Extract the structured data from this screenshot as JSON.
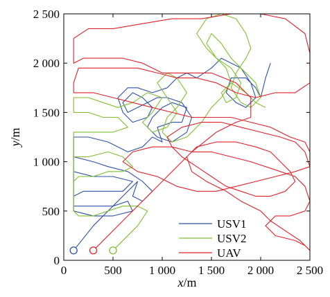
{
  "chart_data": {
    "type": "line",
    "xlabel_var": "x",
    "xlabel_unit": "/m",
    "ylabel_var": "y",
    "ylabel_unit": "/m",
    "xlim": [
      0,
      2500
    ],
    "ylim": [
      0,
      2500
    ],
    "xticks": [
      0,
      500,
      1000,
      1500,
      2000,
      2500
    ],
    "yticks": [
      0,
      500,
      1000,
      1500,
      2000,
      2500
    ],
    "xtick_labels": [
      "0",
      "500",
      "1 000",
      "1 500",
      "2 000",
      "2 500"
    ],
    "ytick_labels": [
      "0",
      "500",
      "1 000",
      "1 500",
      "2 000",
      "2 500"
    ],
    "grid": false,
    "legend_position": "bottom-right",
    "series": [
      {
        "name": "USV1",
        "color": "#2f4fa8",
        "start_marker": [
          100,
          100
        ],
        "x": [
          100,
          300,
          600,
          750,
          700,
          800,
          900,
          800,
          650,
          450,
          300,
          100,
          100,
          300,
          500,
          700,
          600,
          400,
          200,
          100,
          100,
          300,
          500,
          650,
          700,
          500,
          300,
          100,
          100,
          250,
          450,
          650,
          800,
          900,
          1000,
          950,
          1100,
          1200,
          1250,
          1100,
          1000,
          900,
          850,
          950,
          1100,
          1250,
          1300,
          1200,
          1050,
          950,
          850,
          750,
          650,
          600,
          700,
          800,
          900,
          850,
          700,
          600,
          550,
          650,
          750,
          900,
          1050,
          1150,
          1250,
          1350,
          1500,
          1600,
          1800,
          1900,
          1950,
          1850,
          1750,
          1650,
          1700,
          1850,
          1950,
          2000,
          2050,
          2100
        ],
        "y": [
          100,
          350,
          650,
          800,
          650,
          600,
          700,
          800,
          900,
          950,
          1000,
          1050,
          900,
          850,
          850,
          800,
          700,
          700,
          700,
          650,
          550,
          550,
          550,
          600,
          500,
          450,
          450,
          500,
          1250,
          1250,
          1200,
          1100,
          1150,
          1250,
          1200,
          1350,
          1400,
          1400,
          1550,
          1600,
          1550,
          1450,
          1350,
          1250,
          1200,
          1300,
          1450,
          1600,
          1650,
          1650,
          1600,
          1550,
          1500,
          1600,
          1700,
          1650,
          1550,
          1450,
          1400,
          1500,
          1650,
          1750,
          1750,
          1700,
          1750,
          1850,
          1900,
          1850,
          1950,
          2050,
          1950,
          1800,
          1650,
          1550,
          1600,
          1700,
          1850,
          1850,
          1750,
          1650,
          1850,
          2000
        ]
      },
      {
        "name": "USV2",
        "color": "#7fbf2f",
        "start_marker": [
          500,
          100
        ],
        "x": [
          500,
          750,
          850,
          750,
          600,
          450,
          300,
          150,
          100,
          100,
          250,
          450,
          600,
          700,
          600,
          450,
          300,
          150,
          100,
          100,
          300,
          500,
          650,
          550,
          400,
          250,
          100,
          100,
          250,
          400,
          550,
          700,
          850,
          1000,
          900,
          800,
          900,
          1050,
          1150,
          1050,
          950,
          1050,
          1150,
          1250,
          1150,
          1050,
          1000,
          1100,
          1250,
          1400,
          1500,
          1600,
          1700,
          1650,
          1550,
          1450,
          1350,
          1450,
          1600,
          1750,
          1850,
          1900,
          1850,
          1750,
          1700,
          1800,
          1900,
          2000,
          1950,
          1800,
          1700,
          1600,
          1500,
          1450,
          1550,
          1700,
          1800,
          1750,
          1650,
          1600,
          1700,
          1850,
          1950,
          2050
        ],
        "y": [
          100,
          350,
          500,
          550,
          550,
          500,
          450,
          450,
          500,
          1050,
          1050,
          1100,
          1050,
          950,
          900,
          900,
          850,
          850,
          800,
          1300,
          1300,
          1300,
          1350,
          1450,
          1450,
          1500,
          1500,
          1650,
          1650,
          1600,
          1550,
          1600,
          1700,
          1650,
          1500,
          1400,
          1300,
          1350,
          1500,
          1650,
          1800,
          1900,
          1850,
          1700,
          1550,
          1450,
          1300,
          1200,
          1250,
          1400,
          1550,
          1650,
          1800,
          1950,
          2050,
          2150,
          2300,
          2450,
          2500,
          2450,
          2300,
          2150,
          2050,
          1900,
          1750,
          1600,
          1550,
          1650,
          1800,
          1950,
          2050,
          2200,
          2300,
          2200,
          2050,
          1950,
          1800,
          1650,
          1600,
          1700,
          1800,
          1700,
          1600,
          1550
        ]
      },
      {
        "name": "UAV",
        "color": "#e0202a",
        "start_marker": [
          300,
          100
        ],
        "x": [
          300,
          600,
          1000,
          1300,
          1550,
          1750,
          1900,
          1900,
          1750,
          1500,
          1250,
          1000,
          800,
          600,
          400,
          200,
          100,
          100,
          250,
          500,
          800,
          1100,
          1400,
          1700,
          2000,
          2250,
          2450,
          2500,
          2500,
          2350,
          2150,
          1950,
          1750,
          1550,
          1350,
          1150,
          950,
          750,
          550,
          350,
          150,
          100,
          100,
          300,
          500,
          700,
          900,
          1100,
          1300,
          1500,
          1700,
          1900,
          2100,
          2300,
          2450,
          2500,
          2500,
          2350,
          2150,
          1950,
          1750,
          1550,
          1350,
          1150,
          950,
          750,
          600,
          700,
          900,
          1100,
          1300,
          1500,
          1700,
          1900,
          2050,
          2200,
          2350,
          2450,
          2500,
          2450,
          2300,
          2150,
          2050,
          2150,
          2350,
          2450,
          2500,
          2400,
          2250,
          2100,
          2000,
          1800,
          1650,
          1450,
          1300,
          1250,
          1350,
          1550,
          1750,
          1950,
          2100,
          2200,
          2300,
          2350,
          2250,
          2100,
          1950,
          1800,
          1650,
          1500,
          1350,
          1200,
          1100,
          1050,
          1200,
          1400,
          1600,
          1800,
          2000,
          2200,
          2350,
          2450,
          2500
        ],
        "y": [
          100,
          400,
          800,
          1100,
          1300,
          1400,
          1450,
          1650,
          1800,
          1900,
          1900,
          1900,
          2000,
          2050,
          2050,
          2050,
          2000,
          2250,
          2350,
          2350,
          2400,
          2450,
          2450,
          2500,
          2500,
          2450,
          2300,
          2100,
          1800,
          1700,
          1700,
          1650,
          1700,
          1800,
          1850,
          1850,
          1900,
          1950,
          1950,
          1950,
          1950,
          1800,
          1700,
          1700,
          1650,
          1600,
          1550,
          1500,
          1450,
          1450,
          1450,
          1400,
          1350,
          1250,
          1200,
          1100,
          950,
          900,
          850,
          800,
          750,
          700,
          700,
          750,
          850,
          900,
          1000,
          1100,
          1150,
          1150,
          1100,
          1100,
          1050,
          1000,
          950,
          900,
          850,
          750,
          600,
          500,
          450,
          450,
          350,
          250,
          200,
          150,
          100,
          200,
          300,
          400,
          500,
          600,
          700,
          800,
          900,
          1050,
          1150,
          1200,
          1200,
          1150,
          1100,
          1000,
          900,
          800,
          700,
          650,
          650,
          700,
          750,
          850,
          950,
          1050,
          1150,
          1250,
          1350,
          1400,
          1400,
          1350,
          1300,
          1250,
          1200,
          1100,
          950
        ]
      }
    ]
  }
}
